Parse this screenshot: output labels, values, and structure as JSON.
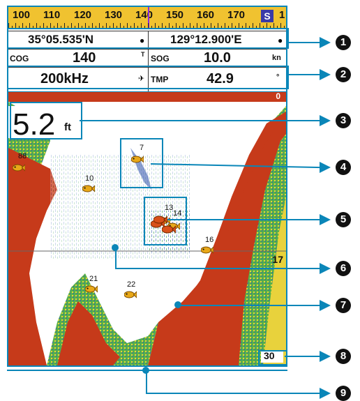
{
  "compass": {
    "numbers": [
      "100",
      "110",
      "120",
      "130",
      "140",
      "150",
      "160",
      "170"
    ],
    "direction_badge": "S",
    "trailing_digit": "1"
  },
  "position": {
    "latitude": "35°05.535'N",
    "longitude": "129°12.900'E"
  },
  "navigation": {
    "cog_label": "COG",
    "cog_value": "140",
    "cog_unit": "T",
    "sog_label": "SOG",
    "sog_value": "10.0",
    "sog_unit": "kn"
  },
  "sensor": {
    "frequency": "200kHz",
    "tmp_label": "TMP",
    "tmp_value": "42.9",
    "tmp_unit": "°"
  },
  "sonar": {
    "range_top": "0",
    "range_mid": "17",
    "range_bottom": "30",
    "depth_value": "5.2",
    "depth_unit": "ft",
    "fish": [
      {
        "label": "88"
      },
      {
        "label": "7"
      },
      {
        "label": "10"
      },
      {
        "label": "13"
      },
      {
        "label": "14"
      },
      {
        "label": "16"
      },
      {
        "label": "21"
      },
      {
        "label": "22"
      }
    ]
  },
  "callouts": [
    "1",
    "2",
    "3",
    "4",
    "5",
    "6",
    "7",
    "8",
    "9"
  ],
  "colors": {
    "callout": "#0a86b8",
    "compass_bg": "#f0c230",
    "bottom_red": "#c63a1a",
    "return_yellow": "#e8d23c",
    "return_green": "#3c9a3c",
    "fish_body": "#e8a818"
  }
}
